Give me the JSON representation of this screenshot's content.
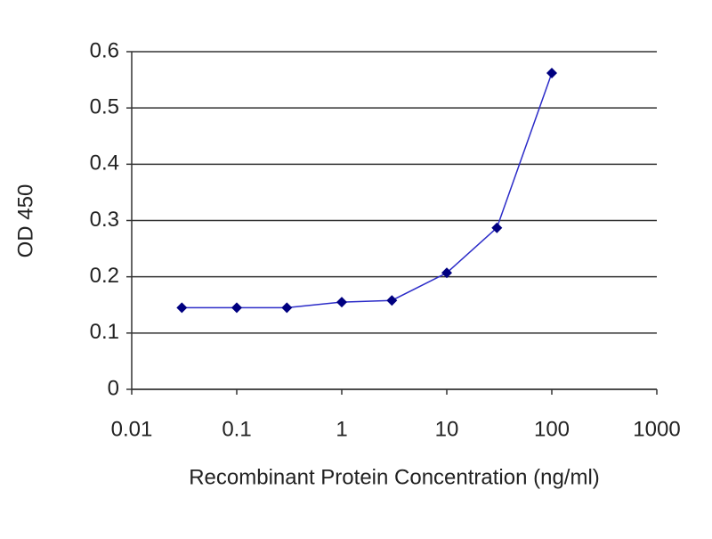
{
  "chart_data": {
    "type": "line",
    "x_label": "Recombinant Protein Concentration (ng/ml)",
    "y_label": "OD 450",
    "x": [
      0.03,
      0.1,
      0.3,
      1,
      3,
      10,
      30,
      100
    ],
    "series": [
      {
        "name": null,
        "color": "#2b2bc8",
        "marker_color": "#000080",
        "values": [
          0.145,
          0.145,
          0.145,
          0.155,
          0.158,
          0.207,
          0.287,
          0.562
        ]
      }
    ],
    "xlim": [
      0.01,
      1000
    ],
    "xticks": [
      0.01,
      0.1,
      1,
      10,
      100,
      1000
    ],
    "x_log": true,
    "ylim": [
      0,
      0.6
    ],
    "yticks": [
      0,
      0.1,
      0.2,
      0.3,
      0.4,
      0.5,
      0.6
    ],
    "grid": true
  }
}
